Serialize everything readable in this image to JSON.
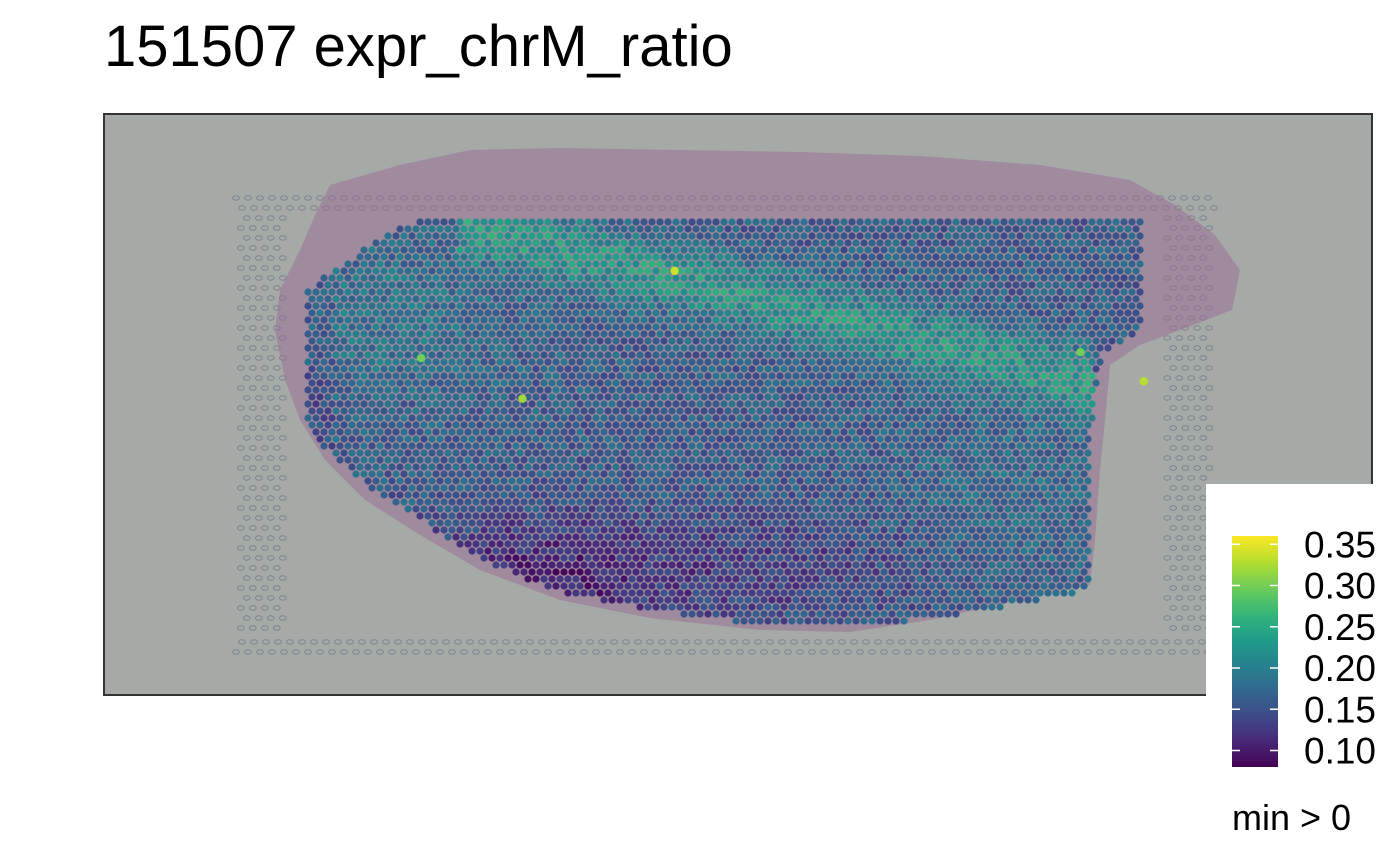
{
  "chart_data": {
    "type": "scatter",
    "title": "151507 expr_chrM_ratio",
    "xlabel": "",
    "ylabel": "",
    "grid": false,
    "background": "tissue-image",
    "colormap": "viridis",
    "legend": {
      "placement": "bottom-right",
      "ticks": [
        "0.10",
        "0.15",
        "0.20",
        "0.25",
        "0.30",
        "0.35"
      ],
      "range": [
        0.08,
        0.36
      ],
      "note": "min > 0"
    },
    "value_range": [
      0.08,
      0.36
    ],
    "highlights": [
      {
        "x": 0.45,
        "y": 0.27,
        "value": 0.34
      },
      {
        "x": 0.82,
        "y": 0.46,
        "value": 0.33
      },
      {
        "x": 0.33,
        "y": 0.49,
        "value": 0.32
      },
      {
        "x": 0.25,
        "y": 0.42,
        "value": 0.3
      },
      {
        "x": 0.77,
        "y": 0.41,
        "value": 0.3
      }
    ]
  },
  "colors": {
    "viridis": [
      "#440154",
      "#482878",
      "#3E4A89",
      "#31688E",
      "#26828E",
      "#1F9E89",
      "#35B779",
      "#6DCD59",
      "#B4DE2C",
      "#FDE725"
    ],
    "panel_border": "#333333",
    "tissue_bg": "#A8ACA8",
    "tissue_stain": "#9E6E9C"
  }
}
